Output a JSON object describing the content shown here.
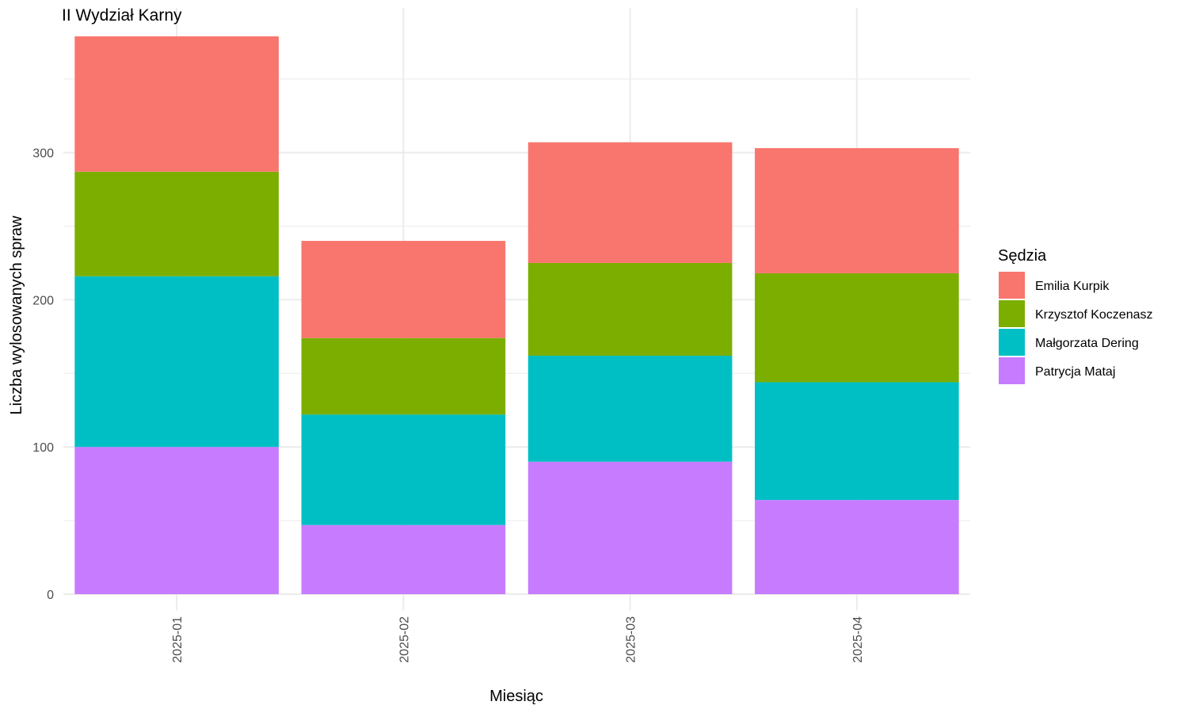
{
  "chart_data": {
    "type": "bar",
    "stacked": true,
    "title": "II Wydział Karny",
    "xlabel": "Miesiąc",
    "ylabel": "Liczba wylosowanych spraw",
    "categories": [
      "2025-01",
      "2025-02",
      "2025-03",
      "2025-04"
    ],
    "ylim": [
      0,
      400
    ],
    "yticks": [
      0,
      100,
      200,
      300
    ],
    "grid": true,
    "legend": {
      "title": "Sędzia",
      "position": "right"
    },
    "series": [
      {
        "name": "Patrycja Mataj",
        "color": "#C77CFF",
        "values": [
          100,
          47,
          90,
          64
        ]
      },
      {
        "name": "Małgorzata Dering",
        "color": "#00BFC4",
        "values": [
          116,
          75,
          72,
          80
        ]
      },
      {
        "name": "Krzysztof Koczenasz",
        "color": "#7CAE00",
        "values": [
          71,
          52,
          63,
          74
        ]
      },
      {
        "name": "Emilia Kurpik",
        "color": "#F8766D",
        "values": [
          92,
          66,
          82,
          85
        ]
      }
    ]
  }
}
